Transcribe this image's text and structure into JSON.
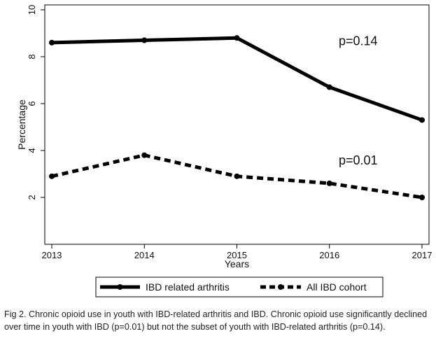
{
  "chart_data": {
    "type": "line",
    "x": [
      2013,
      2014,
      2015,
      2016,
      2017
    ],
    "series": [
      {
        "name": "IBD related arthritis",
        "values": [
          8.6,
          8.7,
          8.8,
          6.7,
          5.3
        ],
        "style": "solid",
        "color": "#000000"
      },
      {
        "name": "All IBD cohort",
        "values": [
          2.9,
          3.8,
          2.9,
          2.6,
          2.0
        ],
        "style": "dashed",
        "color": "#000000"
      }
    ],
    "xlabel": "Years",
    "ylabel": "Percentage",
    "xlim": [
      2013,
      2017
    ],
    "ylim": [
      0,
      10
    ],
    "yticks": [
      2,
      4,
      6,
      8,
      10
    ],
    "xticks": [
      2013,
      2014,
      2015,
      2016,
      2017
    ],
    "grid": false,
    "legend_position": "bottom",
    "annotations": [
      {
        "text": "p=0.14",
        "x": 2016.1,
        "y": 8.5
      },
      {
        "text": "p=0.01",
        "x": 2016.1,
        "y": 3.4
      }
    ]
  },
  "caption": "Fig 2. Chronic opioid use in youth with IBD-related arthritis and IBD. Chronic opioid use significantly declined over time in youth with IBD (p=0.01) but not the subset of youth with IBD-related arthritis (p=0.14)."
}
